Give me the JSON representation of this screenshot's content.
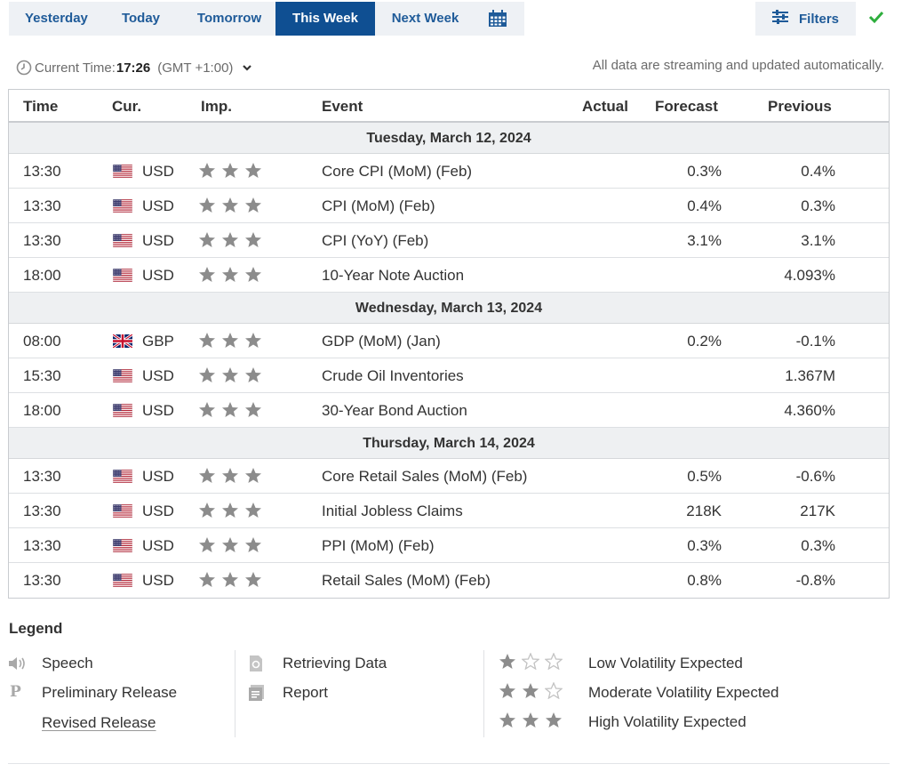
{
  "tabs": [
    {
      "label": "Yesterday"
    },
    {
      "label": "Today"
    },
    {
      "label": "Tomorrow"
    },
    {
      "label": "This Week"
    },
    {
      "label": "Next Week"
    }
  ],
  "filters_label": "Filters",
  "current_time": {
    "prefix": "Current Time:",
    "value": "17:26",
    "timezone": "(GMT +1:00)"
  },
  "streaming_note": "All data are streaming and updated automatically.",
  "columns": {
    "time": "Time",
    "currency": "Cur.",
    "importance": "Imp.",
    "event": "Event",
    "actual": "Actual",
    "forecast": "Forecast",
    "previous": "Previous"
  },
  "days": [
    {
      "label": "Tuesday, March 12, 2024",
      "events": [
        {
          "time": "13:30",
          "currency": "USD",
          "flag": "us-flag-icon",
          "stars": 3,
          "event": "Core CPI (MoM) (Feb)",
          "actual": "",
          "forecast": "0.3%",
          "previous": "0.4%"
        },
        {
          "time": "13:30",
          "currency": "USD",
          "flag": "us-flag-icon",
          "stars": 3,
          "event": "CPI (MoM) (Feb)",
          "actual": "",
          "forecast": "0.4%",
          "previous": "0.3%"
        },
        {
          "time": "13:30",
          "currency": "USD",
          "flag": "us-flag-icon",
          "stars": 3,
          "event": "CPI (YoY) (Feb)",
          "actual": "",
          "forecast": "3.1%",
          "previous": "3.1%"
        },
        {
          "time": "18:00",
          "currency": "USD",
          "flag": "us-flag-icon",
          "stars": 3,
          "event": "10-Year Note Auction",
          "actual": "",
          "forecast": "",
          "previous": "4.093%"
        }
      ]
    },
    {
      "label": "Wednesday, March 13, 2024",
      "events": [
        {
          "time": "08:00",
          "currency": "GBP",
          "flag": "uk-flag-icon",
          "stars": 3,
          "event": "GDP (MoM) (Jan)",
          "actual": "",
          "forecast": "0.2%",
          "previous": "-0.1%"
        },
        {
          "time": "15:30",
          "currency": "USD",
          "flag": "us-flag-icon",
          "stars": 3,
          "event": "Crude Oil Inventories",
          "actual": "",
          "forecast": "",
          "previous": "1.367M"
        },
        {
          "time": "18:00",
          "currency": "USD",
          "flag": "us-flag-icon",
          "stars": 3,
          "event": "30-Year Bond Auction",
          "actual": "",
          "forecast": "",
          "previous": "4.360%"
        }
      ]
    },
    {
      "label": "Thursday, March 14, 2024",
      "events": [
        {
          "time": "13:30",
          "currency": "USD",
          "flag": "us-flag-icon",
          "stars": 3,
          "event": "Core Retail Sales (MoM) (Feb)",
          "actual": "",
          "forecast": "0.5%",
          "previous": "-0.6%"
        },
        {
          "time": "13:30",
          "currency": "USD",
          "flag": "us-flag-icon",
          "stars": 3,
          "event": "Initial Jobless Claims",
          "actual": "",
          "forecast": "218K",
          "previous": "217K"
        },
        {
          "time": "13:30",
          "currency": "USD",
          "flag": "us-flag-icon",
          "stars": 3,
          "event": "PPI (MoM) (Feb)",
          "actual": "",
          "forecast": "0.3%",
          "previous": "0.3%"
        },
        {
          "time": "13:30",
          "currency": "USD",
          "flag": "us-flag-icon",
          "stars": 3,
          "event": "Retail Sales (MoM) (Feb)",
          "actual": "",
          "forecast": "0.8%",
          "previous": "-0.8%"
        }
      ]
    }
  ],
  "legend": {
    "title": "Legend",
    "speech": "Speech",
    "preliminary": "Preliminary Release",
    "preliminary_glyph": "P",
    "revised": "Revised Release",
    "retrieving": "Retrieving Data",
    "report": "Report",
    "low": "Low Volatility Expected",
    "moderate": "Moderate Volatility Expected",
    "high": "High Volatility Expected"
  },
  "colors": {
    "brand_blue": "#1f5b99",
    "active_tab": "#0f4f92",
    "star": "#8c8c8c",
    "check": "#2eae3d"
  }
}
